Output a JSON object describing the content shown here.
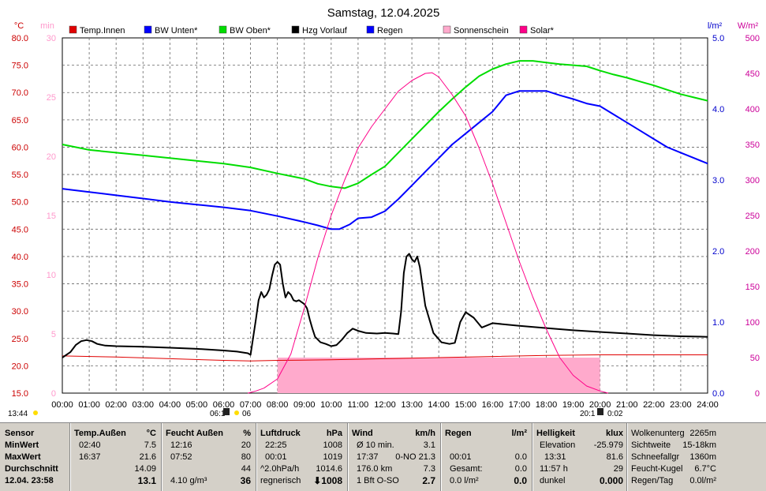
{
  "title": "Samstag, 12.04.2025",
  "axes": {
    "left1_unit": "°C",
    "left1_ticks": [
      "80.0",
      "75.0",
      "70.0",
      "65.0",
      "60.0",
      "55.0",
      "50.0",
      "45.0",
      "40.0",
      "35.0",
      "30.0",
      "25.0",
      "20.0",
      "15.0"
    ],
    "left2_unit": "min",
    "left2_ticks": [
      "30",
      "25",
      "20",
      "15",
      "10",
      "5",
      "0"
    ],
    "right1_unit": "l/m²",
    "right1_ticks": [
      "5.0",
      "4.0",
      "3.0",
      "2.0",
      "1.0",
      "0.0"
    ],
    "right2_unit": "W/m²",
    "right2_ticks": [
      "500",
      "450",
      "400",
      "350",
      "300",
      "250",
      "200",
      "150",
      "100",
      "50",
      "0"
    ],
    "x_ticks": [
      "00:00",
      "01:00",
      "02:00",
      "03:00",
      "04:00",
      "05:00",
      "06:00",
      "07:00",
      "08:00",
      "09:00",
      "10:00",
      "11:00",
      "12:00",
      "13:00",
      "14:00",
      "15:00",
      "16:00",
      "17:00",
      "18:00",
      "19:00",
      "20:00",
      "21:00",
      "22:00",
      "23:00",
      "24:00"
    ],
    "colors": {
      "left1": "#cc0000",
      "left2": "#ff99cc",
      "right1": "#0000cc",
      "right2": "#cc0099"
    }
  },
  "legend": [
    {
      "label": "Temp.Innen",
      "color": "#e00000"
    },
    {
      "label": "BW Unten*",
      "color": "#0000ff"
    },
    {
      "label": "BW Oben*",
      "color": "#00dd00"
    },
    {
      "label": "Hzg Vorlauf",
      "color": "#000000"
    },
    {
      "label": "Regen",
      "color": "#0000ff"
    },
    {
      "label": "Sonnenschein",
      "color": "#ffaacc"
    },
    {
      "label": "Solar*",
      "color": "#ff0088"
    }
  ],
  "sun_markers": {
    "moonrise": "13:44",
    "sunrise_a": "06:1",
    "sunrise_b": "06",
    "sunset_a": "20:1",
    "sunset_b": "0:02"
  },
  "chart_data": {
    "type": "line",
    "title": "Samstag, 12.04.2025",
    "xlabel": "",
    "ylabel": "°C",
    "xlim": [
      0,
      24
    ],
    "ylim": [
      15,
      80
    ],
    "grid": true,
    "series": [
      {
        "name": "Temp.Innen",
        "axis": "left1",
        "color": "#e00000",
        "x": [
          0,
          2,
          4,
          6,
          7,
          8,
          10,
          12,
          14,
          16,
          18,
          20,
          22,
          24
        ],
        "y": [
          21.8,
          21.6,
          21.3,
          21.0,
          20.9,
          21.0,
          21.1,
          21.3,
          21.5,
          21.7,
          21.9,
          22.0,
          22.0,
          22.0
        ]
      },
      {
        "name": "BW Unten*",
        "axis": "left1",
        "color": "#0000ff",
        "x": [
          0,
          1,
          2,
          3,
          4,
          5,
          6,
          7,
          8,
          9,
          9.5,
          10,
          10.3,
          10.7,
          11,
          11.5,
          12,
          12.5,
          13,
          13.5,
          14,
          14.5,
          15,
          15.5,
          16,
          16.5,
          17,
          17.5,
          18,
          18.5,
          19,
          19.5,
          20,
          20.5,
          21,
          21.5,
          22,
          22.5,
          23,
          23.5,
          24
        ],
        "y": [
          52.4,
          51.8,
          51.2,
          50.6,
          50.0,
          49.5,
          49.0,
          48.4,
          47.4,
          46.3,
          45.7,
          45.0,
          45.0,
          45.9,
          47.0,
          47.2,
          48.3,
          50.5,
          53.0,
          55.5,
          58.0,
          60.5,
          62.5,
          64.5,
          66.5,
          69.5,
          70.3,
          70.3,
          70.3,
          69.5,
          68.8,
          68.0,
          67.5,
          66.0,
          64.5,
          63.0,
          61.5,
          60.0,
          59.0,
          58.0,
          57.0
        ]
      },
      {
        "name": "BW Oben*",
        "axis": "left1",
        "color": "#00dd00",
        "x": [
          0,
          1,
          2,
          3,
          4,
          5,
          6,
          7,
          8,
          9,
          9.5,
          10,
          10.5,
          11,
          11.5,
          12,
          12.5,
          13,
          13.5,
          14,
          14.5,
          15,
          15.5,
          16,
          16.5,
          17,
          17.5,
          18,
          18.5,
          19,
          19.5,
          20,
          20.5,
          21,
          21.5,
          22,
          22.5,
          23,
          23.5,
          24
        ],
        "y": [
          60.5,
          59.5,
          59.0,
          58.5,
          58.0,
          57.5,
          57.0,
          56.3,
          55.2,
          54.2,
          53.3,
          52.8,
          52.5,
          53.4,
          55.0,
          56.5,
          59.0,
          61.5,
          64.0,
          66.5,
          68.8,
          71.0,
          73.0,
          74.3,
          75.2,
          75.8,
          75.8,
          75.5,
          75.2,
          75.0,
          74.8,
          74.0,
          73.3,
          72.7,
          72.0,
          71.3,
          70.5,
          69.7,
          69.1,
          68.5
        ]
      },
      {
        "name": "Hzg Vorlauf",
        "axis": "left1",
        "color": "#000000",
        "x": [
          0,
          0.3,
          0.5,
          0.7,
          0.9,
          1.1,
          1.3,
          1.6,
          2,
          3,
          4,
          5,
          6,
          6.5,
          6.9,
          7.0,
          7.2,
          7.3,
          7.4,
          7.5,
          7.6,
          7.7,
          7.8,
          7.9,
          8.0,
          8.1,
          8.2,
          8.3,
          8.4,
          8.5,
          8.6,
          8.7,
          8.8,
          9.0,
          9.1,
          9.2,
          9.3,
          9.4,
          9.6,
          9.8,
          10.0,
          10.2,
          10.4,
          10.6,
          10.8,
          11.0,
          11.3,
          11.7,
          12.0,
          12.3,
          12.5,
          12.6,
          12.7,
          12.8,
          12.9,
          13.0,
          13.1,
          13.2,
          13.3,
          13.5,
          13.8,
          14.1,
          14.4,
          14.6,
          14.8,
          15.0,
          15.3,
          15.6,
          16,
          17,
          18,
          19,
          20,
          21,
          22,
          23,
          24
        ],
        "y": [
          21.5,
          22.5,
          23.8,
          24.5,
          24.7,
          24.5,
          24.0,
          23.7,
          23.6,
          23.5,
          23.3,
          23.1,
          22.8,
          22.6,
          22.3,
          22.0,
          28.5,
          32.0,
          33.5,
          32.5,
          33.0,
          34.0,
          36.5,
          38.5,
          39.0,
          38.5,
          35.0,
          32.5,
          33.5,
          33.0,
          32.0,
          31.8,
          32.0,
          31.3,
          30.5,
          28.5,
          26.8,
          25.3,
          24.3,
          24.0,
          23.6,
          23.8,
          24.8,
          26.0,
          26.8,
          26.4,
          26.0,
          25.9,
          26.0,
          25.9,
          25.8,
          30.0,
          37.0,
          40.0,
          40.5,
          39.5,
          39.0,
          40.0,
          38.0,
          31.0,
          26.0,
          24.3,
          24.0,
          24.2,
          28.0,
          29.8,
          28.8,
          27.0,
          27.8,
          27.3,
          26.9,
          26.5,
          26.2,
          25.9,
          25.6,
          25.4,
          25.3
        ]
      },
      {
        "name": "Solar*",
        "axis": "right2",
        "unit": "W/m²",
        "color": "#ff0088",
        "x": [
          6.9,
          7.2,
          7.5,
          8.0,
          8.5,
          9.0,
          9.5,
          10.0,
          10.5,
          11.0,
          11.5,
          12.0,
          12.5,
          13.0,
          13.5,
          13.75,
          14.0,
          14.5,
          15.0,
          15.5,
          16.0,
          16.5,
          17.0,
          17.5,
          18.0,
          18.5,
          19.0,
          19.5,
          20.0,
          20.3
        ],
        "y": [
          0,
          3,
          7,
          20,
          55,
          120,
          190,
          250,
          300,
          345,
          375,
          400,
          425,
          440,
          450,
          451,
          445,
          420,
          390,
          345,
          295,
          240,
          185,
          135,
          90,
          50,
          25,
          10,
          3,
          0
        ]
      },
      {
        "name": "Sonnenschein",
        "axis": "left2",
        "unit": "min",
        "type": "area",
        "color": "#ffaacc",
        "x": [
          8.0,
          8.5,
          9,
          10,
          11,
          12,
          13,
          14,
          15,
          16,
          17,
          18,
          19,
          20.0
        ],
        "y": [
          3.0,
          3.0,
          3.0,
          3.0,
          3.0,
          3.0,
          3.0,
          3.0,
          3.0,
          3.0,
          3.0,
          3.0,
          3.0,
          3.0
        ]
      }
    ]
  },
  "panel": {
    "sensor": {
      "header": "Sensor",
      "min_label": "MinWert",
      "max_label": "MaxWert",
      "avg_label": "Durchschnitt",
      "now_label": "12.04. 23:58"
    },
    "temp": {
      "header": "Temp.Außen",
      "unit": "°C",
      "min_time": "02:40",
      "min_val": "7.5",
      "max_time": "16:37",
      "max_val": "21.6",
      "avg": "14.09",
      "now": "13.1"
    },
    "hum": {
      "header": "Feucht Außen",
      "unit": "%",
      "min_time": "12:16",
      "min_val": "20",
      "max_time": "07:52",
      "max_val": "80",
      "avg": "44",
      "abs": "4.10 g/m³",
      "now": "36"
    },
    "press": {
      "header": "Luftdruck",
      "unit": "hPa",
      "min_time": "22:25",
      "min_val": "1008",
      "max_time": "00:01",
      "max_val": "1019",
      "trend": "^2.0hPa/h",
      "avg": "1014.6",
      "forecast": "regnerisch",
      "now": "⬇1008"
    },
    "wind": {
      "header": "Wind",
      "unit": "km/h",
      "avg_label": "Ø 10 min.",
      "avg_val": "3.1",
      "gust_time": "17:37",
      "gust_val": "0-NO 21.3",
      "dir_deg": "176.0 km",
      "dir_val": "7.3",
      "now_label": "1 Bft O-SO",
      "now": "2.7"
    },
    "rain": {
      "header": "Regen",
      "unit": "l/m²",
      "t1": "00:01",
      "v1": "0.0",
      "l2": "Gesamt:",
      "v2": "0.0",
      "l3": "0.0 l/m²",
      "now": "0.0"
    },
    "light": {
      "header": "Helligkeit",
      "unit": "klux",
      "elev_label": "Elevation",
      "elev_val": "-25.979",
      "max_time": "13:31",
      "max_val": "81.6",
      "sun_h": "11:57 h",
      "sun_v": "29",
      "state": "dunkel",
      "now": "0.000"
    },
    "misc": {
      "l1": "Wolkenunterg",
      "v1": "2265m",
      "l2": "Sichtweite",
      "v2": "15-18km",
      "l3": "Schneefallgr",
      "v3": "1360m",
      "l4": "Feucht-Kugel",
      "v4": "6.7°C",
      "l5": "Regen/Tag",
      "v5": "0.0l/m²"
    }
  }
}
